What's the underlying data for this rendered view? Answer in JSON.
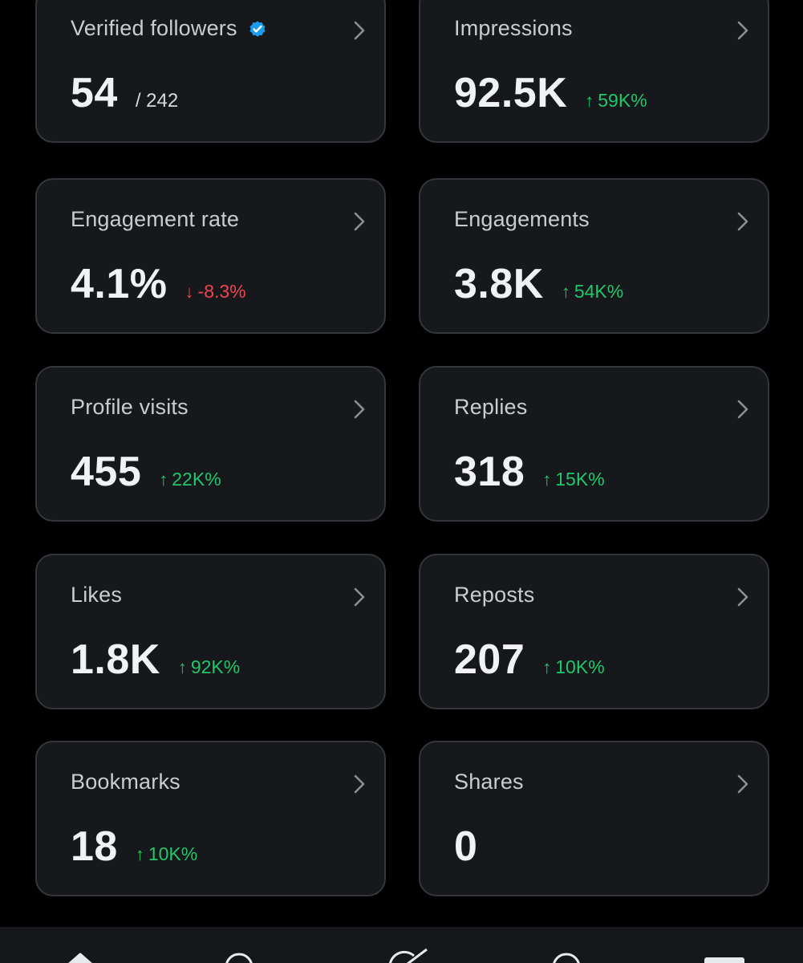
{
  "colors": {
    "background": "#000000",
    "card_background": "#16181c",
    "card_border": "#33363c",
    "positive": "#1fc86a",
    "negative": "#f0444e",
    "verified_blue": "#1d9bf0"
  },
  "metrics": [
    {
      "label": "Verified followers",
      "value": "54",
      "sub": "/ 242",
      "verified_icon": "verified-badge-icon"
    },
    {
      "label": "Impressions",
      "value": "92.5K",
      "delta": "59K%",
      "direction": "up"
    },
    {
      "label": "Engagement rate",
      "value": "4.1%",
      "delta": "-8.3%",
      "direction": "down"
    },
    {
      "label": "Engagements",
      "value": "3.8K",
      "delta": "54K%",
      "direction": "up"
    },
    {
      "label": "Profile visits",
      "value": "455",
      "delta": "22K%",
      "direction": "up"
    },
    {
      "label": "Replies",
      "value": "318",
      "delta": "15K%",
      "direction": "up"
    },
    {
      "label": "Likes",
      "value": "1.8K",
      "delta": "92K%",
      "direction": "up"
    },
    {
      "label": "Reposts",
      "value": "207",
      "delta": "10K%",
      "direction": "up"
    },
    {
      "label": "Bookmarks",
      "value": "18",
      "delta": "10K%",
      "direction": "up"
    },
    {
      "label": "Shares",
      "value": "0"
    }
  ],
  "icons": {
    "chevron": "chevron-right-icon",
    "arrow_up": "↑",
    "arrow_down": "↓"
  },
  "bottom_nav": [
    "home-icon",
    "search-icon",
    "grok-icon",
    "notifications-icon",
    "messages-icon"
  ]
}
